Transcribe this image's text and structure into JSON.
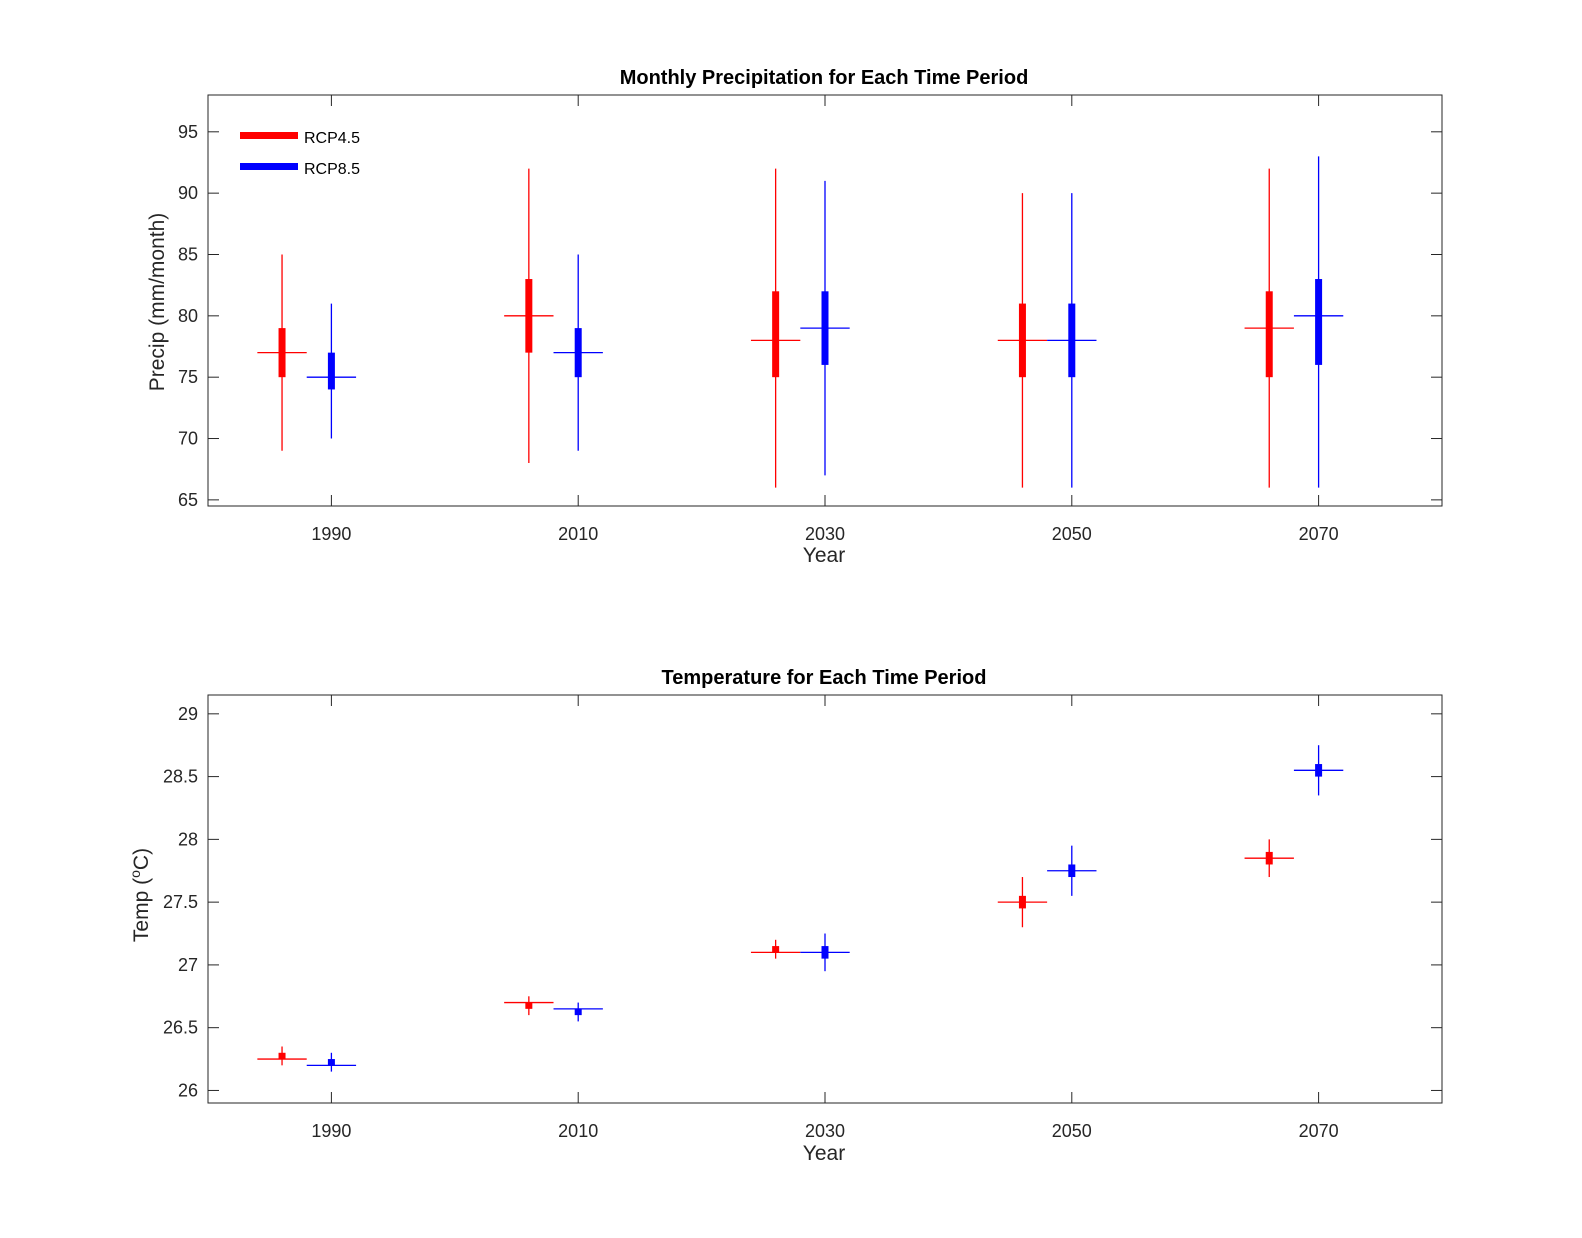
{
  "colors": {
    "rcp45": "#ff0000",
    "rcp85": "#0000ff",
    "axis": "#262626"
  },
  "legend": [
    {
      "label": "RCP4.5",
      "color": "#ff0000"
    },
    {
      "label": "RCP8.5",
      "color": "#0000ff"
    }
  ],
  "chart_data": [
    {
      "type": "box",
      "title": "Monthly Precipitation for Each Time Period",
      "xlabel": "Year",
      "ylabel": "Precip (mm/month)",
      "xlim": [
        1980,
        2080
      ],
      "ylim": [
        64.5,
        98
      ],
      "xticks": [
        "1990",
        "2010",
        "2030",
        "2050",
        "2070"
      ],
      "yticks": [
        "65",
        "70",
        "75",
        "80",
        "85",
        "90",
        "95"
      ],
      "legend_position": "top-left",
      "series": [
        {
          "name": "RCP4.5",
          "color": "#ff0000",
          "points": [
            {
              "x": 1986,
              "min": 69,
              "q1": 75,
              "median": 77,
              "q3": 79,
              "max": 85
            },
            {
              "x": 2006,
              "min": 68,
              "q1": 77,
              "median": 80,
              "q3": 83,
              "max": 92
            },
            {
              "x": 2026,
              "min": 66,
              "q1": 75,
              "median": 78,
              "q3": 82,
              "max": 92
            },
            {
              "x": 2046,
              "min": 66,
              "q1": 75,
              "median": 78,
              "q3": 81,
              "max": 90
            },
            {
              "x": 2066,
              "min": 66,
              "q1": 75,
              "median": 79,
              "q3": 82,
              "max": 92
            }
          ]
        },
        {
          "name": "RCP8.5",
          "color": "#0000ff",
          "points": [
            {
              "x": 1990,
              "min": 70,
              "q1": 74,
              "median": 75,
              "q3": 77,
              "max": 81
            },
            {
              "x": 2010,
              "min": 69,
              "q1": 75,
              "median": 77,
              "q3": 79,
              "max": 85
            },
            {
              "x": 2030,
              "min": 67,
              "q1": 76,
              "median": 79,
              "q3": 82,
              "max": 91
            },
            {
              "x": 2050,
              "min": 66,
              "q1": 75,
              "median": 78,
              "q3": 81,
              "max": 90
            },
            {
              "x": 2070,
              "min": 66,
              "q1": 76,
              "median": 80,
              "q3": 83,
              "max": 93
            }
          ]
        }
      ]
    },
    {
      "type": "box",
      "title": "Temperature for Each Time Period",
      "xlabel": "Year",
      "ylabel_prefix": "Temp (",
      "ylabel_sup": "o",
      "ylabel_suffix": "C)",
      "xlim": [
        1980,
        2080
      ],
      "ylim": [
        25.9,
        29.15
      ],
      "xticks": [
        "1990",
        "2010",
        "2030",
        "2050",
        "2070"
      ],
      "yticks": [
        "26",
        "26.5",
        "27",
        "27.5",
        "28",
        "28.5",
        "29"
      ],
      "series": [
        {
          "name": "RCP4.5",
          "color": "#ff0000",
          "points": [
            {
              "x": 1986,
              "min": 26.2,
              "q1": 26.25,
              "median": 26.25,
              "q3": 26.3,
              "max": 26.35
            },
            {
              "x": 2006,
              "min": 26.6,
              "q1": 26.65,
              "median": 26.7,
              "q3": 26.7,
              "max": 26.75
            },
            {
              "x": 2026,
              "min": 27.05,
              "q1": 27.1,
              "median": 27.1,
              "q3": 27.15,
              "max": 27.2
            },
            {
              "x": 2046,
              "min": 27.3,
              "q1": 27.45,
              "median": 27.5,
              "q3": 27.55,
              "max": 27.7
            },
            {
              "x": 2066,
              "min": 27.7,
              "q1": 27.8,
              "median": 27.85,
              "q3": 27.9,
              "max": 28.0
            }
          ]
        },
        {
          "name": "RCP8.5",
          "color": "#0000ff",
          "points": [
            {
              "x": 1990,
              "min": 26.15,
              "q1": 26.2,
              "median": 26.2,
              "q3": 26.25,
              "max": 26.3
            },
            {
              "x": 2010,
              "min": 26.55,
              "q1": 26.6,
              "median": 26.65,
              "q3": 26.65,
              "max": 26.7
            },
            {
              "x": 2030,
              "min": 26.95,
              "q1": 27.05,
              "median": 27.1,
              "q3": 27.15,
              "max": 27.25
            },
            {
              "x": 2050,
              "min": 27.55,
              "q1": 27.7,
              "median": 27.75,
              "q3": 27.8,
              "max": 27.95
            },
            {
              "x": 2070,
              "min": 28.35,
              "q1": 28.5,
              "median": 28.55,
              "q3": 28.6,
              "max": 28.75
            }
          ]
        }
      ]
    }
  ]
}
